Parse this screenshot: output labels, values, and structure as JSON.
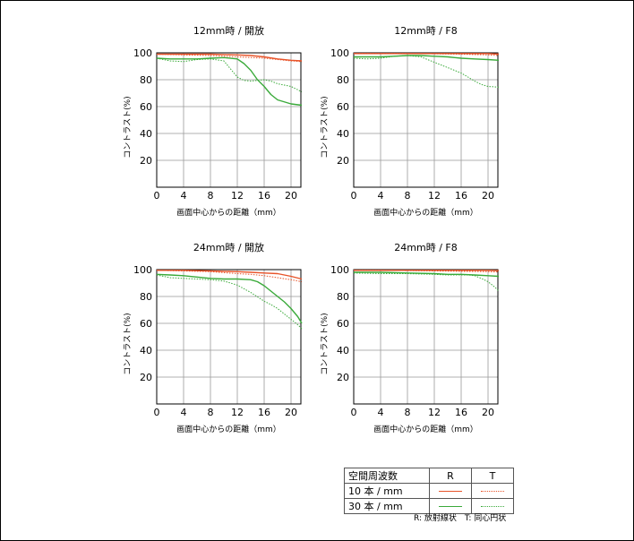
{
  "colors": {
    "r10": "#e8542a",
    "r30": "#3aaa3a",
    "grid": "#999999",
    "axis": "#000000"
  },
  "chart_data": [
    {
      "type": "line",
      "title": "12mm時 / 開放",
      "xlabel": "画面中心からの距離（mm）",
      "ylabel": "コントラスト(%)",
      "xlim": [
        0,
        21.6
      ],
      "ylim": [
        0,
        100
      ],
      "xticks": [
        0,
        4,
        8,
        12,
        16,
        20
      ],
      "yticks": [
        20,
        40,
        60,
        80,
        100
      ],
      "series": [
        {
          "name": "10本/mm R",
          "style": "solid-orange",
          "points": [
            [
              0,
              99
            ],
            [
              4,
              99
            ],
            [
              8,
              99
            ],
            [
              12,
              98.5
            ],
            [
              14,
              98
            ],
            [
              16,
              97
            ],
            [
              18,
              95.5
            ],
            [
              20,
              94.5
            ],
            [
              21.6,
              94
            ]
          ]
        },
        {
          "name": "10本/mm T",
          "style": "dotted-orange",
          "points": [
            [
              0,
              99
            ],
            [
              4,
              98.5
            ],
            [
              8,
              98
            ],
            [
              12,
              97
            ],
            [
              14,
              96.5
            ],
            [
              16,
              96
            ],
            [
              18,
              95
            ],
            [
              20,
              94
            ],
            [
              21.6,
              93.5
            ]
          ]
        },
        {
          "name": "30本/mm R",
          "style": "solid-green",
          "points": [
            [
              0,
              96
            ],
            [
              2,
              95.5
            ],
            [
              4,
              95.5
            ],
            [
              6,
              95.5
            ],
            [
              8,
              96
            ],
            [
              10,
              96.5
            ],
            [
              12,
              95.5
            ],
            [
              13,
              92
            ],
            [
              14,
              87
            ],
            [
              15,
              80
            ],
            [
              16,
              75
            ],
            [
              17,
              69
            ],
            [
              18,
              65
            ],
            [
              20,
              62
            ],
            [
              21.6,
              61
            ]
          ]
        },
        {
          "name": "30本/mm T",
          "style": "dotted-green",
          "points": [
            [
              0,
              96
            ],
            [
              2,
              94
            ],
            [
              4,
              93.5
            ],
            [
              6,
              95
            ],
            [
              8,
              95.5
            ],
            [
              10,
              94
            ],
            [
              11,
              88
            ],
            [
              12,
              82
            ],
            [
              13,
              79.5
            ],
            [
              14,
              79
            ],
            [
              15,
              79.5
            ],
            [
              16,
              80
            ],
            [
              17,
              79
            ],
            [
              18,
              77
            ],
            [
              20,
              75
            ],
            [
              21.6,
              71
            ]
          ]
        }
      ]
    },
    {
      "type": "line",
      "title": "12mm時 / F8",
      "xlabel": "画面中心からの距離（mm）",
      "ylabel": "コントラスト(%)",
      "xlim": [
        0,
        21.6
      ],
      "ylim": [
        0,
        100
      ],
      "xticks": [
        0,
        4,
        8,
        12,
        16,
        20
      ],
      "yticks": [
        20,
        40,
        60,
        80,
        100
      ],
      "series": [
        {
          "name": "10本/mm R",
          "style": "solid-orange",
          "points": [
            [
              0,
              99.5
            ],
            [
              4,
              99.5
            ],
            [
              8,
              99.5
            ],
            [
              12,
              99.5
            ],
            [
              16,
              99.5
            ],
            [
              20,
              99.5
            ],
            [
              21.6,
              99
            ]
          ]
        },
        {
          "name": "10本/mm T",
          "style": "dotted-orange",
          "points": [
            [
              0,
              99.5
            ],
            [
              4,
              99.5
            ],
            [
              8,
              99.5
            ],
            [
              12,
              99.3
            ],
            [
              16,
              99
            ],
            [
              20,
              98.5
            ],
            [
              21.6,
              98
            ]
          ]
        },
        {
          "name": "30本/mm R",
          "style": "solid-green",
          "points": [
            [
              0,
              97
            ],
            [
              2,
              97
            ],
            [
              4,
              97
            ],
            [
              6,
              97.5
            ],
            [
              8,
              98
            ],
            [
              10,
              98
            ],
            [
              12,
              97.5
            ],
            [
              14,
              97
            ],
            [
              16,
              96
            ],
            [
              18,
              95.5
            ],
            [
              20,
              95
            ],
            [
              21.6,
              94.5
            ]
          ]
        },
        {
          "name": "30本/mm T",
          "style": "dotted-green",
          "points": [
            [
              0,
              96
            ],
            [
              2,
              95.5
            ],
            [
              4,
              96
            ],
            [
              6,
              97.5
            ],
            [
              8,
              98
            ],
            [
              10,
              97
            ],
            [
              12,
              93
            ],
            [
              14,
              89
            ],
            [
              16,
              85
            ],
            [
              17,
              82
            ],
            [
              18,
              79
            ],
            [
              19,
              76.5
            ],
            [
              20,
              75
            ],
            [
              21.6,
              74.5
            ]
          ]
        }
      ]
    },
    {
      "type": "line",
      "title": "24mm時 / 開放",
      "xlabel": "画面中心からの距離（mm）",
      "ylabel": "コントラスト(%)",
      "xlim": [
        0,
        21.6
      ],
      "ylim": [
        0,
        100
      ],
      "xticks": [
        0,
        4,
        8,
        12,
        16,
        20
      ],
      "yticks": [
        20,
        40,
        60,
        80,
        100
      ],
      "series": [
        {
          "name": "10本/mm R",
          "style": "solid-orange",
          "points": [
            [
              0,
              99.5
            ],
            [
              4,
              99.5
            ],
            [
              8,
              99
            ],
            [
              12,
              98.5
            ],
            [
              14,
              98
            ],
            [
              16,
              97.5
            ],
            [
              18,
              97
            ],
            [
              20,
              95
            ],
            [
              21.6,
              93
            ]
          ]
        },
        {
          "name": "10本/mm T",
          "style": "dotted-orange",
          "points": [
            [
              0,
              99.5
            ],
            [
              4,
              99
            ],
            [
              8,
              98.5
            ],
            [
              12,
              97
            ],
            [
              14,
              96.5
            ],
            [
              16,
              95.5
            ],
            [
              18,
              94
            ],
            [
              20,
              92.5
            ],
            [
              21.6,
              91
            ]
          ]
        },
        {
          "name": "30本/mm R",
          "style": "solid-green",
          "points": [
            [
              0,
              96.5
            ],
            [
              2,
              96
            ],
            [
              4,
              95.5
            ],
            [
              6,
              94.5
            ],
            [
              8,
              93.5
            ],
            [
              10,
              93
            ],
            [
              12,
              93
            ],
            [
              14,
              92.5
            ],
            [
              15,
              91
            ],
            [
              16,
              88
            ],
            [
              17,
              84
            ],
            [
              18,
              80
            ],
            [
              19,
              76
            ],
            [
              20,
              71
            ],
            [
              21,
              65
            ],
            [
              21.6,
              60
            ]
          ]
        },
        {
          "name": "30本/mm T",
          "style": "dotted-green",
          "points": [
            [
              0,
              96
            ],
            [
              2,
              94
            ],
            [
              4,
              93.5
            ],
            [
              6,
              93
            ],
            [
              8,
              92.5
            ],
            [
              10,
              91.5
            ],
            [
              12,
              88.5
            ],
            [
              14,
              83
            ],
            [
              16,
              76.5
            ],
            [
              17,
              74
            ],
            [
              18,
              71
            ],
            [
              19,
              67
            ],
            [
              20,
              63
            ],
            [
              21,
              59
            ],
            [
              21.6,
              56
            ]
          ]
        }
      ]
    },
    {
      "type": "line",
      "title": "24mm時 / F8",
      "xlabel": "画面中心からの距離（mm）",
      "ylabel": "コントラスト(%)",
      "xlim": [
        0,
        21.6
      ],
      "ylim": [
        0,
        100
      ],
      "xticks": [
        0,
        4,
        8,
        12,
        16,
        20
      ],
      "yticks": [
        20,
        40,
        60,
        80,
        100
      ],
      "series": [
        {
          "name": "10本/mm R",
          "style": "solid-orange",
          "points": [
            [
              0,
              99.5
            ],
            [
              4,
              99.5
            ],
            [
              8,
              99.5
            ],
            [
              12,
              99.5
            ],
            [
              16,
              99.5
            ],
            [
              20,
              99.5
            ],
            [
              21.6,
              99.3
            ]
          ]
        },
        {
          "name": "10本/mm T",
          "style": "dotted-orange",
          "points": [
            [
              0,
              99.5
            ],
            [
              4,
              99.5
            ],
            [
              8,
              99.3
            ],
            [
              12,
              99
            ],
            [
              16,
              98.7
            ],
            [
              20,
              98.5
            ],
            [
              21.6,
              98.3
            ]
          ]
        },
        {
          "name": "30本/mm R",
          "style": "solid-green",
          "points": [
            [
              0,
              98
            ],
            [
              4,
              98
            ],
            [
              8,
              97.5
            ],
            [
              12,
              97
            ],
            [
              14,
              96.5
            ],
            [
              16,
              96.5
            ],
            [
              18,
              96
            ],
            [
              20,
              95.5
            ],
            [
              21.6,
              95
            ]
          ]
        },
        {
          "name": "30本/mm T",
          "style": "dotted-green",
          "points": [
            [
              0,
              97.5
            ],
            [
              4,
              97
            ],
            [
              8,
              97
            ],
            [
              12,
              96.5
            ],
            [
              14,
              96
            ],
            [
              16,
              96
            ],
            [
              17,
              96
            ],
            [
              18,
              95.5
            ],
            [
              19,
              93.5
            ],
            [
              20,
              91
            ],
            [
              21,
              87
            ],
            [
              21.6,
              84
            ]
          ]
        }
      ]
    }
  ],
  "legend": {
    "header": "空間周波数",
    "col_r": "R",
    "col_t": "T",
    "row1": "10 本 / mm",
    "row2": "30 本 / mm",
    "note": "R: 放射線状　T: 同心円状"
  }
}
